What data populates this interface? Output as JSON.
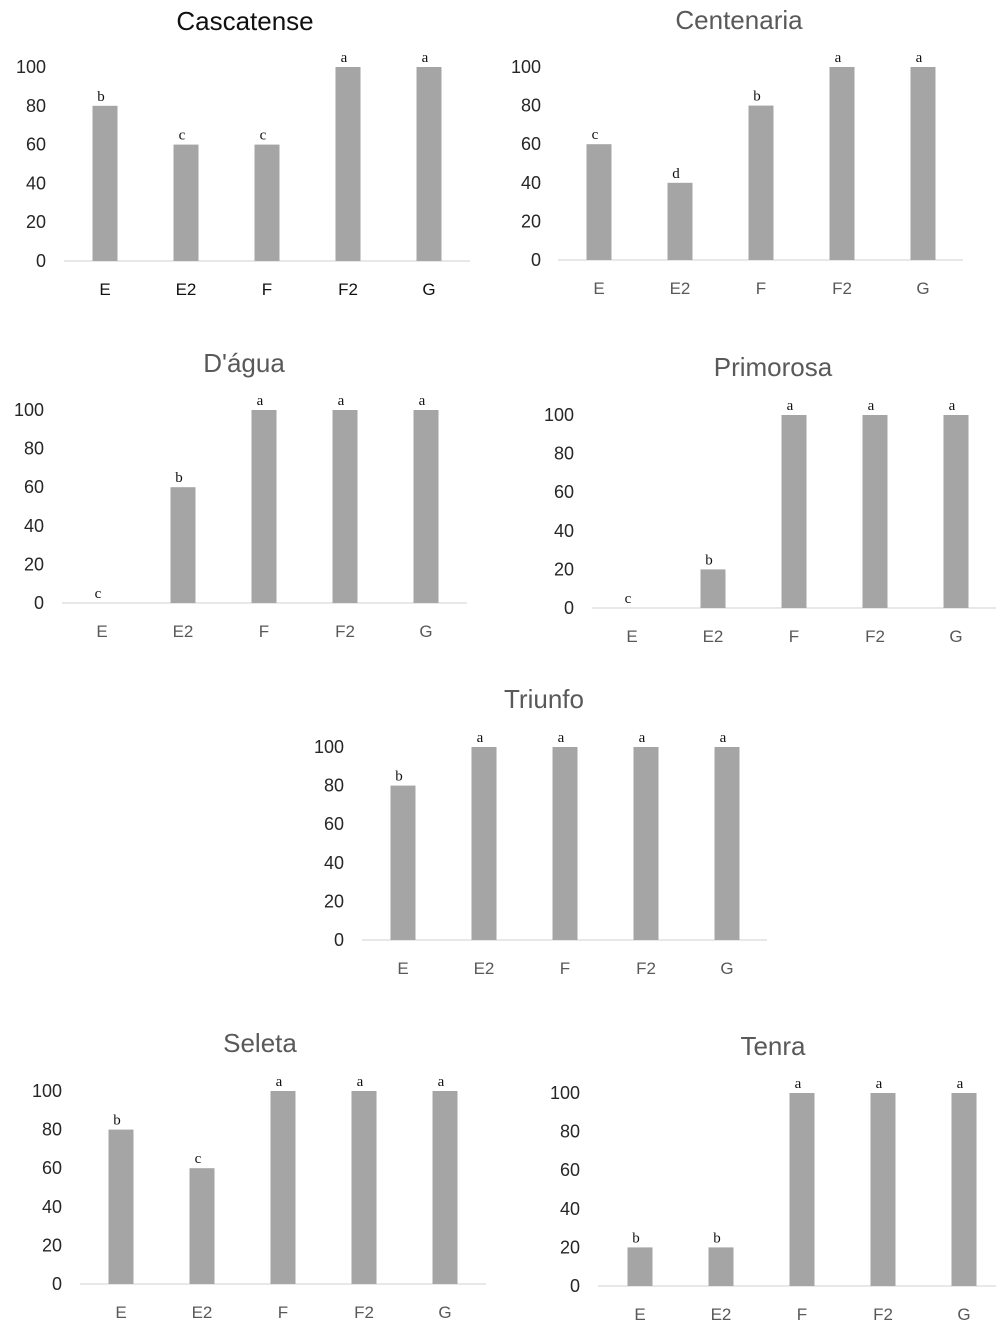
{
  "chart_data": [
    {
      "type": "bar",
      "title": "Cascatense",
      "categories": [
        "E",
        "E2",
        "F",
        "F2",
        "G"
      ],
      "values": [
        80,
        60,
        60,
        100,
        100
      ],
      "labels": [
        "b",
        "c",
        "c",
        "a",
        "a"
      ],
      "yticks": [
        "0",
        "20",
        "40",
        "60",
        "80",
        "100"
      ],
      "ylim": [
        0,
        100
      ],
      "grid": false
    },
    {
      "type": "bar",
      "title": "Centenaria",
      "categories": [
        "E",
        "E2",
        "F",
        "F2",
        "G"
      ],
      "values": [
        60,
        40,
        80,
        100,
        100
      ],
      "labels": [
        "c",
        "d",
        "b",
        "a",
        "a"
      ],
      "yticks": [
        "0",
        "20",
        "40",
        "60",
        "80",
        "100"
      ],
      "ylim": [
        0,
        100
      ],
      "grid": false
    },
    {
      "type": "bar",
      "title": "D'água",
      "categories": [
        "E",
        "E2",
        "F",
        "F2",
        "G"
      ],
      "values": [
        0,
        60,
        100,
        100,
        100
      ],
      "labels": [
        "c",
        "b",
        "a",
        "a",
        "a"
      ],
      "yticks": [
        "0",
        "20",
        "40",
        "60",
        "80",
        "100"
      ],
      "ylim": [
        0,
        100
      ],
      "grid": false
    },
    {
      "type": "bar",
      "title": "Primorosa",
      "categories": [
        "E",
        "E2",
        "F",
        "F2",
        "G"
      ],
      "values": [
        0,
        20,
        100,
        100,
        100
      ],
      "labels": [
        "c",
        "b",
        "a",
        "a",
        "a"
      ],
      "yticks": [
        "0",
        "20",
        "40",
        "60",
        "80",
        "100"
      ],
      "ylim": [
        0,
        100
      ],
      "grid": false
    },
    {
      "type": "bar",
      "title": "Triunfo",
      "categories": [
        "E",
        "E2",
        "F",
        "F2",
        "G"
      ],
      "values": [
        80,
        100,
        100,
        100,
        100
      ],
      "labels": [
        "b",
        "a",
        "a",
        "a",
        "a"
      ],
      "yticks": [
        "0",
        "20",
        "40",
        "60",
        "80",
        "100"
      ],
      "ylim": [
        0,
        100
      ],
      "grid": false
    },
    {
      "type": "bar",
      "title": "Seleta",
      "categories": [
        "E",
        "E2",
        "F",
        "F2",
        "G"
      ],
      "values": [
        80,
        60,
        100,
        100,
        100
      ],
      "labels": [
        "b",
        "c",
        "a",
        "a",
        "a"
      ],
      "yticks": [
        "0",
        "20",
        "40",
        "60",
        "80",
        "100"
      ],
      "ylim": [
        0,
        100
      ],
      "grid": false
    },
    {
      "type": "bar",
      "title": "Tenra",
      "categories": [
        "E",
        "E2",
        "F",
        "F2",
        "G"
      ],
      "values": [
        20,
        20,
        100,
        100,
        100
      ],
      "labels": [
        "b",
        "b",
        "a",
        "a",
        "a"
      ],
      "yticks": [
        "0",
        "20",
        "40",
        "60",
        "80",
        "100"
      ],
      "ylim": [
        0,
        100
      ],
      "grid": false
    }
  ],
  "colors": {
    "bar": "#a5a5a5",
    "axis": "#d9d9d9"
  }
}
